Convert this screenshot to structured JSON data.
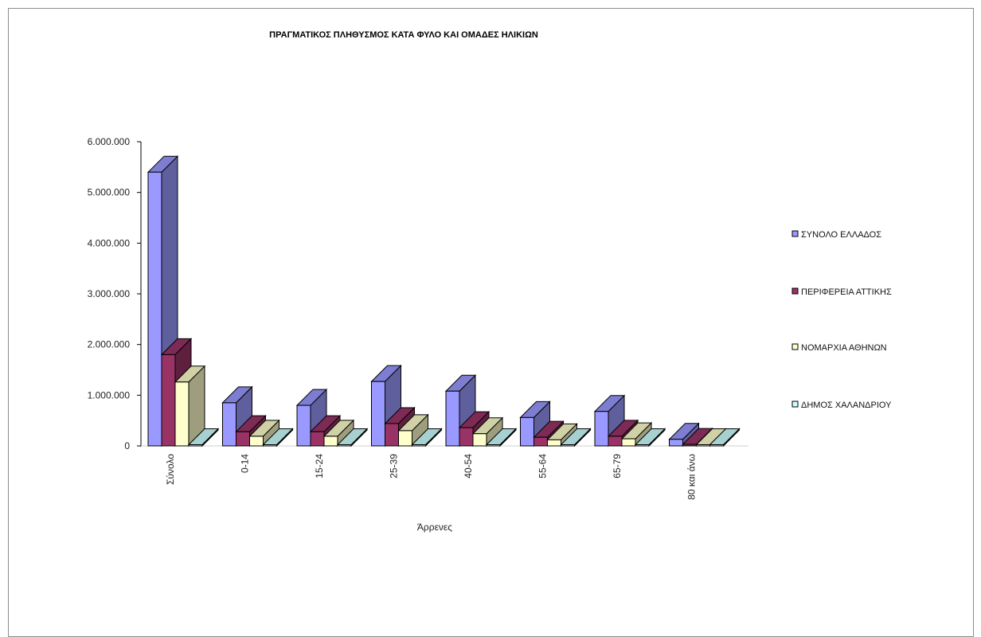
{
  "chart_data": {
    "type": "bar",
    "title": "ΠΡΑΓΜΑΤΙΚΟΣ ΠΛΗΘΥΣΜΟΣ ΚΑΤΑ ΦΥΛΟ ΚΑΙ ΟΜΑΔΕΣ ΗΛΙΚΙΩΝ",
    "xlabel": "Άρρενες",
    "ylabel": "",
    "categories": [
      "Σύνολο",
      "0-14",
      "15-24",
      "25-39",
      "40-54",
      "55-64",
      "65-79",
      "80 και άνω"
    ],
    "ylim": [
      0,
      6000000
    ],
    "yticks": [
      "0",
      "1.000.000",
      "2.000.000",
      "3.000.000",
      "4.000.000",
      "5.000.000",
      "6.000.000"
    ],
    "grid": false,
    "legend_position": "right",
    "series": [
      {
        "name": "ΣΥΝΟΛΟ ΕΛΛΑΔΟΣ",
        "color": "#9999ff",
        "values": [
          5400000,
          850000,
          800000,
          1270000,
          1080000,
          560000,
          680000,
          130000
        ]
      },
      {
        "name": "ΠΕΡΙΦΕΡΕΙΑ ΑΤΤΙΚΗΣ",
        "color": "#993366",
        "values": [
          1800000,
          280000,
          280000,
          440000,
          360000,
          170000,
          190000,
          30000
        ]
      },
      {
        "name": "ΝΟΜΑΡΧΙΑ ΑΘΗΝΩΝ",
        "color": "#ffffcc",
        "values": [
          1260000,
          190000,
          190000,
          300000,
          240000,
          120000,
          140000,
          20000
        ]
      },
      {
        "name": "ΔΗΜΟΣ ΧΑΛΑΝΔΡΙΟΥ",
        "color": "#ccffff",
        "values": [
          20000,
          5000,
          5000,
          8000,
          6000,
          3000,
          3000,
          500
        ]
      }
    ]
  }
}
